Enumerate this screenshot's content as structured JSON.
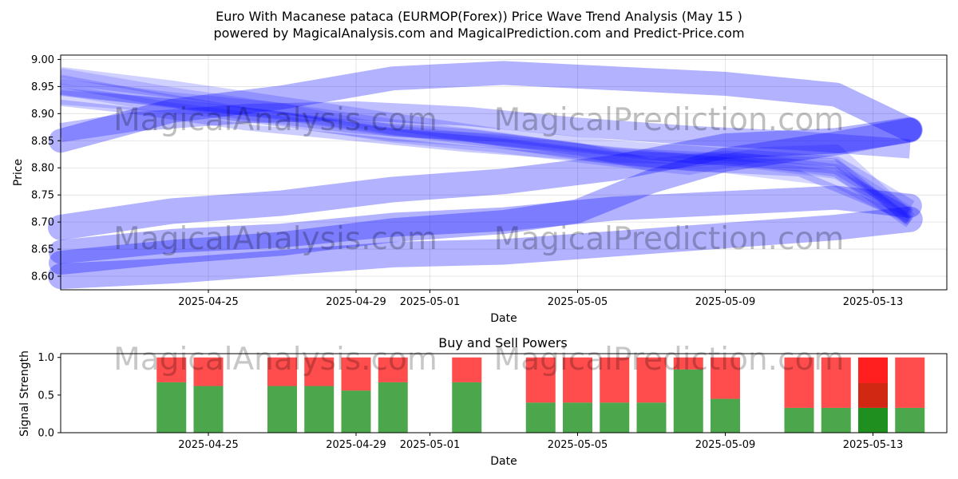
{
  "title_line1": "Euro With Macanese pataca (EURMOP(Forex)) Price Wave Trend Analysis (May 15 )",
  "title_line2": "powered by MagicalAnalysis.com and MagicalPrediction.com and Predict-Price.com",
  "watermarks": [
    "MagicalAnalysis.com",
    "MagicalPrediction.com"
  ],
  "colors": {
    "wave": "#0000ff",
    "buy": "#008000",
    "sell": "#ff0000"
  },
  "chart_data": [
    {
      "type": "line",
      "title": "",
      "xlabel": "Date",
      "ylabel": "Price",
      "x_tick_labels": [
        "2025-04-25",
        "2025-04-29",
        "2025-05-01",
        "2025-05-05",
        "2025-05-09",
        "2025-05-13"
      ],
      "y_tick_labels": [
        "8.60",
        "8.65",
        "8.70",
        "8.75",
        "8.80",
        "8.85",
        "8.90",
        "8.95",
        "9.00"
      ],
      "xlim": [
        "2025-04-21",
        "2025-05-15"
      ],
      "ylim": [
        8.575,
        9.008
      ],
      "grid": true,
      "bands": [
        {
          "width": 32,
          "opacity": 0.3,
          "points": [
            [
              "2025-04-21",
              8.69
            ],
            [
              "2025-04-24",
              8.72
            ],
            [
              "2025-04-27",
              8.735
            ],
            [
              "2025-04-30",
              8.76
            ],
            [
              "2025-05-03",
              8.775
            ],
            [
              "2025-05-06",
              8.8
            ],
            [
              "2025-05-09",
              8.84
            ],
            [
              "2025-05-12",
              8.85
            ],
            [
              "2025-05-14",
              8.87
            ]
          ]
        },
        {
          "width": 32,
          "opacity": 0.3,
          "points": [
            [
              "2025-04-21",
              8.6
            ],
            [
              "2025-04-24",
              8.61
            ],
            [
              "2025-04-27",
              8.625
            ],
            [
              "2025-04-30",
              8.64
            ],
            [
              "2025-05-03",
              8.645
            ],
            [
              "2025-05-06",
              8.66
            ],
            [
              "2025-05-09",
              8.675
            ],
            [
              "2025-05-12",
              8.69
            ],
            [
              "2025-05-14",
              8.705
            ]
          ]
        },
        {
          "width": 30,
          "opacity": 0.3,
          "points": [
            [
              "2025-04-21",
              8.85
            ],
            [
              "2025-04-24",
              8.905
            ],
            [
              "2025-04-27",
              8.93
            ],
            [
              "2025-04-30",
              8.965
            ],
            [
              "2025-05-03",
              8.975
            ],
            [
              "2025-05-06",
              8.965
            ],
            [
              "2025-05-09",
              8.955
            ],
            [
              "2025-05-12",
              8.935
            ],
            [
              "2025-05-14",
              8.87
            ]
          ]
        },
        {
          "width": 30,
          "opacity": 0.3,
          "points": [
            [
              "2025-04-21",
              8.645
            ],
            [
              "2025-04-24",
              8.665
            ],
            [
              "2025-04-27",
              8.675
            ],
            [
              "2025-04-30",
              8.695
            ],
            [
              "2025-05-03",
              8.705
            ],
            [
              "2025-05-06",
              8.725
            ],
            [
              "2025-05-09",
              8.735
            ],
            [
              "2025-05-12",
              8.745
            ],
            [
              "2025-05-14",
              8.73
            ]
          ]
        },
        {
          "width": 30,
          "opacity": 0.3,
          "points": [
            [
              "2025-04-21",
              8.625
            ],
            [
              "2025-04-24",
              8.645
            ],
            [
              "2025-04-27",
              8.66
            ],
            [
              "2025-04-30",
              8.685
            ],
            [
              "2025-05-03",
              8.7
            ],
            [
              "2025-05-05",
              8.72
            ],
            [
              "2025-05-07",
              8.775
            ],
            [
              "2025-05-09",
              8.815
            ],
            [
              "2025-05-12",
              8.845
            ],
            [
              "2025-05-14",
              8.87
            ]
          ]
        },
        {
          "width": 24,
          "opacity": 0.25,
          "points": [
            [
              "2025-04-21",
              8.865
            ],
            [
              "2025-04-23",
              8.885
            ],
            [
              "2025-04-26",
              8.9
            ],
            [
              "2025-04-29",
              8.905
            ],
            [
              "2025-05-02",
              8.895
            ],
            [
              "2025-05-05",
              8.875
            ],
            [
              "2025-05-08",
              8.86
            ],
            [
              "2025-05-11",
              8.85
            ],
            [
              "2025-05-14",
              8.835
            ]
          ]
        },
        {
          "width": 22,
          "opacity": 0.18,
          "points": [
            [
              "2025-04-21",
              8.97
            ],
            [
              "2025-04-24",
              8.945
            ],
            [
              "2025-04-27",
              8.915
            ],
            [
              "2025-04-30",
              8.885
            ],
            [
              "2025-05-03",
              8.855
            ],
            [
              "2025-05-06",
              8.835
            ],
            [
              "2025-05-09",
              8.82
            ],
            [
              "2025-05-12",
              8.805
            ],
            [
              "2025-05-14",
              8.725
            ]
          ]
        },
        {
          "width": 20,
          "opacity": 0.16,
          "points": [
            [
              "2025-04-21",
              8.95
            ],
            [
              "2025-04-24",
              8.925
            ],
            [
              "2025-04-27",
              8.905
            ],
            [
              "2025-04-30",
              8.875
            ],
            [
              "2025-05-03",
              8.85
            ],
            [
              "2025-05-06",
              8.82
            ],
            [
              "2025-05-09",
              8.805
            ],
            [
              "2025-05-12",
              8.78
            ],
            [
              "2025-05-14",
              8.71
            ]
          ]
        },
        {
          "width": 18,
          "opacity": 0.16,
          "points": [
            [
              "2025-04-21",
              8.93
            ],
            [
              "2025-04-24",
              8.915
            ],
            [
              "2025-04-27",
              8.89
            ],
            [
              "2025-04-30",
              8.86
            ],
            [
              "2025-05-03",
              8.84
            ],
            [
              "2025-05-06",
              8.815
            ],
            [
              "2025-05-08",
              8.8
            ],
            [
              "2025-05-10",
              8.825
            ],
            [
              "2025-05-12",
              8.83
            ],
            [
              "2025-05-14",
              8.705
            ]
          ]
        },
        {
          "width": 16,
          "opacity": 0.18,
          "points": [
            [
              "2025-04-21",
              8.96
            ],
            [
              "2025-04-23",
              8.935
            ],
            [
              "2025-04-26",
              8.9
            ],
            [
              "2025-04-29",
              8.875
            ],
            [
              "2025-05-02",
              8.86
            ],
            [
              "2025-05-05",
              8.835
            ],
            [
              "2025-05-07",
              8.805
            ],
            [
              "2025-05-09",
              8.82
            ],
            [
              "2025-05-12",
              8.795
            ],
            [
              "2025-05-14",
              8.7
            ]
          ]
        },
        {
          "width": 14,
          "opacity": 0.15,
          "points": [
            [
              "2025-04-21",
              8.945
            ],
            [
              "2025-04-24",
              8.91
            ],
            [
              "2025-04-27",
              8.885
            ],
            [
              "2025-04-30",
              8.86
            ],
            [
              "2025-05-03",
              8.845
            ],
            [
              "2025-05-06",
              8.82
            ],
            [
              "2025-05-09",
              8.815
            ],
            [
              "2025-05-12",
              8.79
            ],
            [
              "2025-05-14",
              8.715
            ]
          ]
        },
        {
          "width": 12,
          "opacity": 0.15,
          "points": [
            [
              "2025-04-21",
              8.975
            ],
            [
              "2025-04-24",
              8.94
            ],
            [
              "2025-04-27",
              8.91
            ],
            [
              "2025-04-30",
              8.87
            ],
            [
              "2025-05-03",
              8.85
            ],
            [
              "2025-05-06",
              8.83
            ],
            [
              "2025-05-09",
              8.81
            ],
            [
              "2025-05-12",
              8.805
            ],
            [
              "2025-05-14",
              8.72
            ]
          ]
        },
        {
          "width": 10,
          "opacity": 0.18,
          "points": [
            [
              "2025-04-21",
              8.94
            ],
            [
              "2025-04-24",
              8.92
            ],
            [
              "2025-04-27",
              8.895
            ],
            [
              "2025-04-30",
              8.865
            ],
            [
              "2025-05-03",
              8.855
            ],
            [
              "2025-05-06",
              8.83
            ],
            [
              "2025-05-09",
              8.82
            ],
            [
              "2025-05-12",
              8.81
            ],
            [
              "2025-05-14",
              8.7
            ]
          ]
        },
        {
          "width": 8,
          "opacity": 0.2,
          "points": [
            [
              "2025-04-21",
              8.92
            ],
            [
              "2025-04-23",
              8.905
            ],
            [
              "2025-04-26",
              8.875
            ],
            [
              "2025-04-29",
              8.855
            ],
            [
              "2025-05-02",
              8.835
            ],
            [
              "2025-05-05",
              8.82
            ],
            [
              "2025-05-08",
              8.8
            ],
            [
              "2025-05-11",
              8.79
            ],
            [
              "2025-05-14",
              8.705
            ]
          ]
        }
      ]
    },
    {
      "type": "bar",
      "stacked": true,
      "title": "Buy and Sell Powers",
      "xlabel": "Date",
      "ylabel": "Signal Strength",
      "x_tick_labels": [
        "2025-04-25",
        "2025-04-29",
        "2025-05-01",
        "2025-05-05",
        "2025-05-09",
        "2025-05-13"
      ],
      "y_tick_labels": [
        "0.0",
        "0.5",
        "1.0"
      ],
      "xlim": [
        "2025-04-21",
        "2025-05-15"
      ],
      "ylim": [
        0,
        1.05
      ],
      "categories": [
        "2025-04-24",
        "2025-04-25",
        "2025-04-27",
        "2025-04-28",
        "2025-04-29",
        "2025-04-30",
        "2025-05-02",
        "2025-05-04",
        "2025-05-05",
        "2025-05-06",
        "2025-05-07",
        "2025-05-08",
        "2025-05-09",
        "2025-05-11",
        "2025-05-12",
        "2025-05-13",
        "2025-05-14"
      ],
      "series": [
        {
          "values": [
            0.67,
            0.62,
            0.62,
            0.62,
            0.56,
            0.67,
            0.67,
            0.4,
            0.4,
            0.4,
            0.4,
            0.84,
            0.45,
            0.33,
            0.33,
            0.33,
            0.33
          ]
        },
        {
          "values": [
            0.33,
            0.38,
            0.38,
            0.38,
            0.44,
            0.33,
            0.33,
            0.6,
            0.6,
            0.6,
            0.6,
            0.16,
            0.55,
            0.67,
            0.67,
            0.67,
            0.67
          ]
        }
      ],
      "highlighted": "2025-05-13"
    }
  ]
}
